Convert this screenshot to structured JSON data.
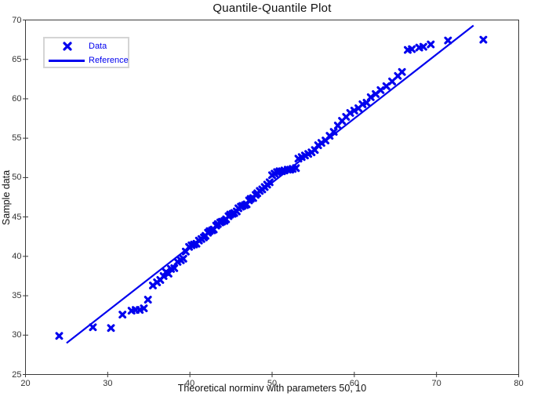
{
  "title_text": "Quantile-Quantile Plot",
  "colors": {
    "accent": "#0000EE",
    "axis": "#3a3a3a",
    "tick_label": "#333333",
    "legend_border": "#d4d4d4",
    "background": "#ffffff"
  },
  "chart_data": {
    "type": "scatter",
    "title": "Quantile-Quantile Plot",
    "xlabel": "Theoretical norminv with parameters 50, 10",
    "ylabel": "Sample data",
    "xlim": [
      20,
      80
    ],
    "ylim": [
      25,
      70
    ],
    "xticks": [
      20,
      30,
      40,
      50,
      60,
      70,
      80
    ],
    "yticks": [
      25,
      30,
      35,
      40,
      45,
      50,
      55,
      60,
      65,
      70
    ],
    "grid": false,
    "legend_position": "top-left-inside",
    "series": [
      {
        "name": "Data",
        "type": "scatter",
        "marker": "x",
        "points": [
          [
            24.1,
            29.9
          ],
          [
            28.2,
            31.0
          ],
          [
            30.4,
            30.9
          ],
          [
            31.8,
            32.6
          ],
          [
            32.9,
            33.1
          ],
          [
            33.4,
            33.2
          ],
          [
            33.9,
            33.2
          ],
          [
            34.4,
            33.4
          ],
          [
            34.9,
            34.5
          ],
          [
            35.5,
            36.3
          ],
          [
            36.0,
            36.7
          ],
          [
            36.4,
            37.0
          ],
          [
            36.8,
            37.5
          ],
          [
            37.1,
            38.0
          ],
          [
            37.4,
            37.8
          ],
          [
            37.7,
            38.4
          ],
          [
            38.1,
            38.5
          ],
          [
            38.5,
            39.3
          ],
          [
            38.9,
            39.5
          ],
          [
            39.2,
            39.7
          ],
          [
            39.5,
            40.6
          ],
          [
            39.9,
            41.2
          ],
          [
            40.2,
            41.4
          ],
          [
            40.5,
            41.5
          ],
          [
            40.8,
            41.6
          ],
          [
            41.1,
            42.0
          ],
          [
            41.4,
            42.2
          ],
          [
            41.7,
            42.4
          ],
          [
            41.9,
            42.6
          ],
          [
            42.2,
            43.0
          ],
          [
            42.4,
            43.2
          ],
          [
            42.7,
            43.3
          ],
          [
            42.9,
            43.4
          ],
          [
            43.2,
            43.9
          ],
          [
            43.4,
            44.1
          ],
          [
            43.7,
            44.3
          ],
          [
            43.9,
            44.4
          ],
          [
            44.2,
            44.5
          ],
          [
            44.4,
            44.7
          ],
          [
            44.7,
            45.1
          ],
          [
            44.9,
            45.3
          ],
          [
            45.2,
            45.4
          ],
          [
            45.4,
            45.5
          ],
          [
            45.7,
            45.7
          ],
          [
            45.9,
            46.1
          ],
          [
            46.2,
            46.3
          ],
          [
            46.4,
            46.4
          ],
          [
            46.7,
            46.5
          ],
          [
            46.9,
            46.6
          ],
          [
            47.2,
            47.1
          ],
          [
            47.4,
            47.3
          ],
          [
            47.7,
            47.4
          ],
          [
            48.0,
            47.8
          ],
          [
            48.2,
            48.0
          ],
          [
            48.5,
            48.3
          ],
          [
            48.8,
            48.5
          ],
          [
            49.1,
            48.8
          ],
          [
            49.4,
            49.1
          ],
          [
            49.7,
            49.4
          ],
          [
            50.0,
            50.3
          ],
          [
            50.3,
            50.5
          ],
          [
            50.6,
            50.7
          ],
          [
            50.9,
            50.8
          ],
          [
            51.2,
            50.8
          ],
          [
            51.5,
            50.9
          ],
          [
            51.9,
            51.0
          ],
          [
            52.2,
            51.0
          ],
          [
            52.5,
            51.1
          ],
          [
            52.9,
            51.2
          ],
          [
            53.2,
            52.4
          ],
          [
            53.6,
            52.6
          ],
          [
            54.0,
            52.8
          ],
          [
            54.4,
            53.0
          ],
          [
            54.8,
            53.2
          ],
          [
            55.2,
            53.5
          ],
          [
            55.6,
            54.1
          ],
          [
            56.0,
            54.4
          ],
          [
            56.5,
            54.7
          ],
          [
            57.0,
            55.3
          ],
          [
            57.5,
            55.8
          ],
          [
            58.0,
            56.6
          ],
          [
            58.5,
            57.2
          ],
          [
            59.0,
            57.7
          ],
          [
            59.5,
            58.2
          ],
          [
            60.0,
            58.5
          ],
          [
            60.5,
            58.8
          ],
          [
            61.0,
            59.3
          ],
          [
            61.5,
            59.5
          ],
          [
            62.0,
            60.2
          ],
          [
            62.6,
            60.6
          ],
          [
            63.2,
            61.1
          ],
          [
            63.9,
            61.6
          ],
          [
            64.6,
            62.2
          ],
          [
            65.3,
            62.9
          ],
          [
            65.8,
            63.4
          ],
          [
            66.5,
            66.2
          ],
          [
            67.0,
            66.3
          ],
          [
            67.9,
            66.5
          ],
          [
            68.4,
            66.6
          ],
          [
            69.3,
            66.9
          ],
          [
            71.4,
            67.4
          ],
          [
            75.7,
            67.5
          ]
        ]
      },
      {
        "name": "Reference",
        "type": "line",
        "points": [
          [
            25.0,
            29.0
          ],
          [
            74.5,
            69.3
          ]
        ]
      }
    ]
  }
}
